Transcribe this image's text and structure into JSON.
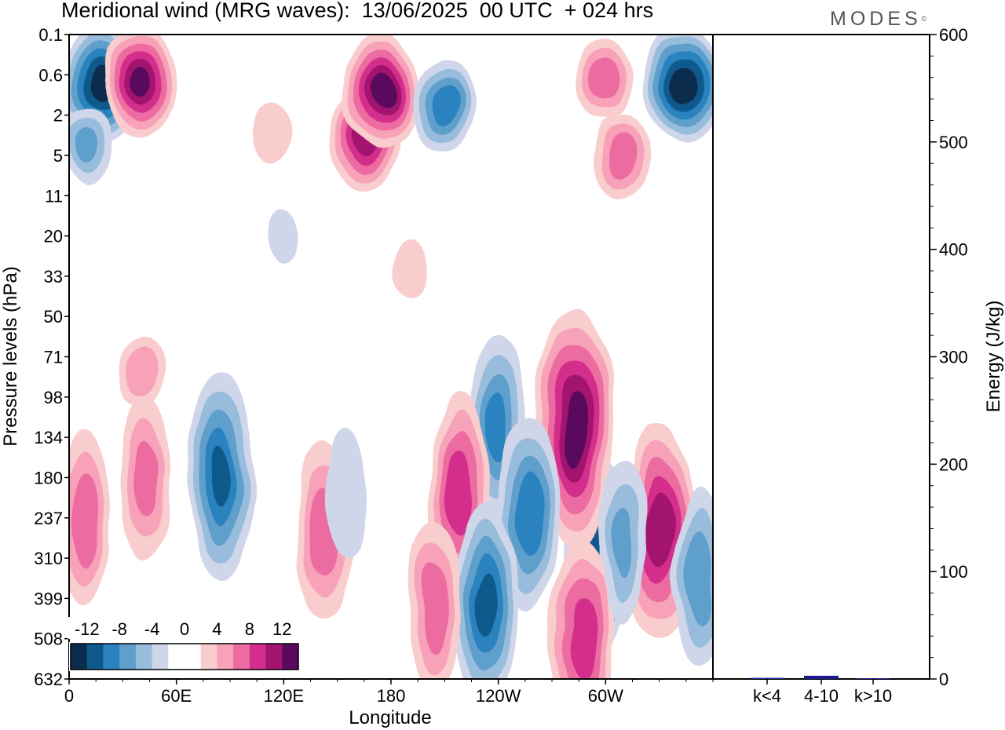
{
  "header": {
    "title": "Meridional wind (MRG waves):  13/06/2025  00 UTC  + 024 hrs",
    "logo": "MODES",
    "logo_mark": "©"
  },
  "chart_data": [
    {
      "type": "heatmap",
      "title": "Meridional wind (MRG waves):  13/06/2025  00 UTC  + 024 hrs",
      "xlabel": "Longitude",
      "ylabel": "Pressure levels (hPa)",
      "x_ticks": [
        "0",
        "60E",
        "120E",
        "180",
        "120W",
        "60W"
      ],
      "y_ticks": [
        "0.1",
        "0.6",
        "2",
        "5",
        "11",
        "20",
        "33",
        "50",
        "71",
        "98",
        "134",
        "180",
        "237",
        "310",
        "399",
        "508",
        "632"
      ],
      "colorbar": {
        "tick_labels": [
          "-12",
          "-8",
          "-4",
          "0",
          "4",
          "8",
          "12"
        ],
        "colors": [
          "#0b2c4d",
          "#0f5a8c",
          "#2a82bf",
          "#5f9fcc",
          "#98bcdc",
          "#cfd6ea",
          "#ffffff",
          "#ffffff",
          "#f9cdcd",
          "#f7a2b8",
          "#ec6ba0",
          "#d42e8c",
          "#a3146f",
          "#5a0a5e"
        ]
      },
      "blobs": [
        {
          "lon": 18,
          "lev": 0.8,
          "value": -13
        },
        {
          "lon": 40,
          "lev": 0.8,
          "value": 12
        },
        {
          "lon": 343,
          "lev": 0.8,
          "value": -13
        },
        {
          "lon": 300,
          "lev": 0.7,
          "value": 7
        },
        {
          "lon": 165,
          "lev": 3.5,
          "value": 11
        },
        {
          "lon": 175,
          "lev": 1.0,
          "value": 13
        },
        {
          "lon": 210,
          "lev": 1.5,
          "value": -9
        },
        {
          "lon": 310,
          "lev": 5.0,
          "value": 7
        },
        {
          "lon": 10,
          "lev": 4.0,
          "value": -6
        },
        {
          "lon": 113,
          "lev": 3.0,
          "value": 3
        },
        {
          "lon": 295,
          "lev": 300,
          "value": -10
        },
        {
          "lon": 330,
          "lev": 260,
          "value": 11
        },
        {
          "lon": 283,
          "lev": 125,
          "value": 13
        },
        {
          "lon": 240,
          "lev": 125,
          "value": -8
        },
        {
          "lon": 257,
          "lev": 230,
          "value": -9
        },
        {
          "lon": 218,
          "lev": 200,
          "value": 9
        },
        {
          "lon": 233,
          "lev": 420,
          "value": -10
        },
        {
          "lon": 287,
          "lev": 500,
          "value": 9
        },
        {
          "lon": 85,
          "lev": 180,
          "value": -10
        },
        {
          "lon": 43,
          "lev": 180,
          "value": 6
        },
        {
          "lon": 8,
          "lev": 240,
          "value": 7
        },
        {
          "lon": 143,
          "lev": 260,
          "value": 7
        },
        {
          "lon": 353,
          "lev": 350,
          "value": -7
        },
        {
          "lon": 204,
          "lev": 420,
          "value": 7
        },
        {
          "lon": 310,
          "lev": 280,
          "value": -6
        },
        {
          "lon": 40,
          "lev": 80,
          "value": 5
        },
        {
          "lon": 192,
          "lev": 30,
          "value": 3
        },
        {
          "lon": 120,
          "lev": 20,
          "value": -2
        },
        {
          "lon": 155,
          "lev": 200,
          "value": -3
        }
      ]
    },
    {
      "type": "bar",
      "categories": [
        "k<4",
        "4-10",
        "k>10"
      ],
      "values": [
        1,
        3,
        0
      ],
      "ylabel": "Energy (J/kg)",
      "ylim": [
        0,
        600
      ],
      "y_ticks": [
        "0",
        "100",
        "200",
        "300",
        "400",
        "500",
        "600"
      ],
      "bar_color": "#1a1a8c"
    }
  ]
}
